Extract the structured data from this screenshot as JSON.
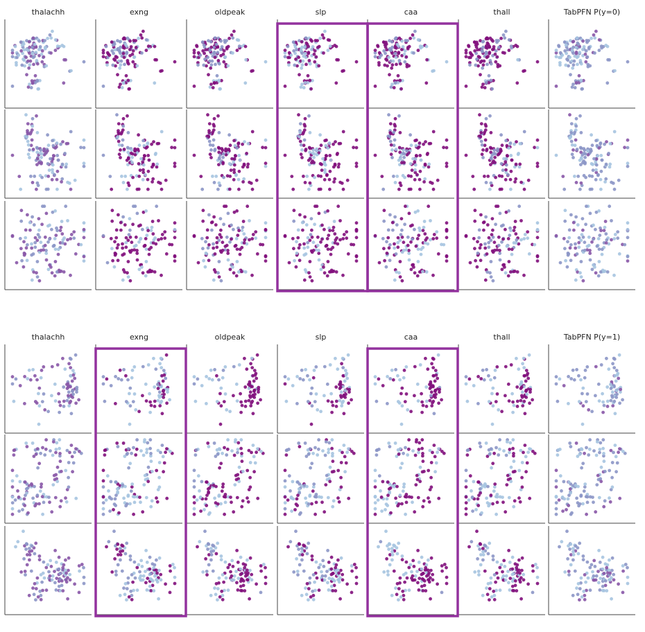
{
  "chart_data": {
    "type": "scatter",
    "palette": [
      "#a6c4e0",
      "#8c96c6",
      "#8856a7",
      "#810f7c"
    ],
    "highlight_color": "#93329e",
    "blocks": [
      {
        "columns": [
          "thalachh",
          "exng",
          "oldpeak",
          "slp",
          "caa",
          "thall",
          "TabPFN P(y=0)"
        ],
        "highlighted_columns": [
          3,
          4
        ],
        "rows": 3
      },
      {
        "columns": [
          "thalachh",
          "exng",
          "oldpeak",
          "slp",
          "caa",
          "thall",
          "TabPFN P(y=1)"
        ],
        "highlighted_columns": [
          1,
          4
        ],
        "rows": 3
      }
    ]
  }
}
